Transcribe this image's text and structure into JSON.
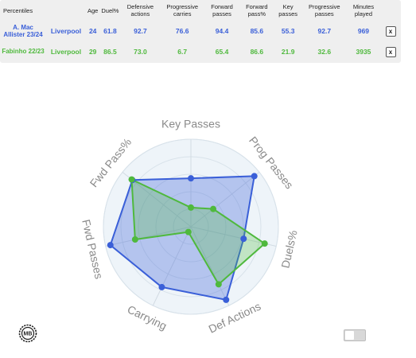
{
  "table": {
    "headers": [
      "Percentiles",
      "Age",
      "Duel%",
      "Defensive actions",
      "Progressive carries",
      "Forward passes",
      "Forward pass%",
      "Key passes",
      "Progressive passes",
      "Minutes played"
    ],
    "rows": [
      {
        "player": "A. Mac Allister 23/24",
        "team": "Liverpool",
        "values": [
          "24",
          "61.8",
          "92.7",
          "76.6",
          "94.4",
          "85.6",
          "55.3",
          "92.7",
          "969"
        ],
        "remove": "x"
      },
      {
        "player": "Fabinho 22/23",
        "team": "Liverpool",
        "values": [
          "29",
          "86.5",
          "73.0",
          "6.7",
          "65.4",
          "86.6",
          "21.9",
          "32.6",
          "3935"
        ],
        "remove": "x"
      }
    ]
  },
  "chart_data": {
    "type": "radar",
    "axes": [
      "Key Passes",
      "Prog Passes",
      "Duels%",
      "Def Actions",
      "Carrying",
      "Fwd Passes",
      "Fwd Pass%"
    ],
    "range": [
      0,
      100
    ],
    "series": [
      {
        "name": "A. Mac Allister 23/24",
        "color": "#3a5fd8",
        "values": [
          55.3,
          92.7,
          61.8,
          92.7,
          76.6,
          94.4,
          85.6
        ]
      },
      {
        "name": "Fabinho 22/23",
        "color": "#4fb93d",
        "values": [
          21.9,
          32.6,
          86.5,
          73.0,
          6.7,
          65.4,
          86.6
        ]
      }
    ],
    "rings": 5
  },
  "logo": {
    "text": "MB"
  },
  "colors": {
    "series1": "#3a5fd8",
    "series2": "#4fb93d",
    "panel": "#efefef"
  }
}
